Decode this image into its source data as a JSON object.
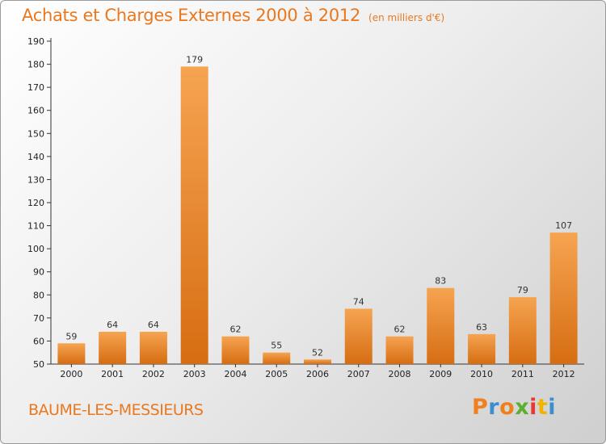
{
  "header": {
    "title": "Achats et Charges Externes 2000 à 2012",
    "unit": "(en milliers d'€)"
  },
  "footer": {
    "commune": "BAUME-LES-MESSIEURS",
    "brand": "Proxiti"
  },
  "colors": {
    "title": "#e9781e",
    "bar_light": "#f6a451",
    "bar_dark": "#d66d12",
    "brand_letters": [
      "#f0801d",
      "#3b8ed0",
      "#f0801d",
      "#5bb030",
      "#e53935",
      "#f0b400",
      "#3b8ed0"
    ]
  },
  "chart_data": {
    "type": "bar",
    "categories": [
      "2000",
      "2001",
      "2002",
      "2003",
      "2004",
      "2005",
      "2006",
      "2007",
      "2008",
      "2009",
      "2010",
      "2011",
      "2012"
    ],
    "values": [
      59,
      64,
      64,
      179,
      62,
      55,
      52,
      74,
      62,
      83,
      63,
      79,
      107
    ],
    "title": "Achats et Charges Externes 2000 à 2012",
    "xlabel": "",
    "ylabel": "",
    "ylim": [
      50,
      190
    ],
    "yticks": [
      50,
      60,
      70,
      80,
      90,
      100,
      110,
      120,
      130,
      140,
      150,
      160,
      170,
      180,
      190
    ],
    "grid": false
  }
}
